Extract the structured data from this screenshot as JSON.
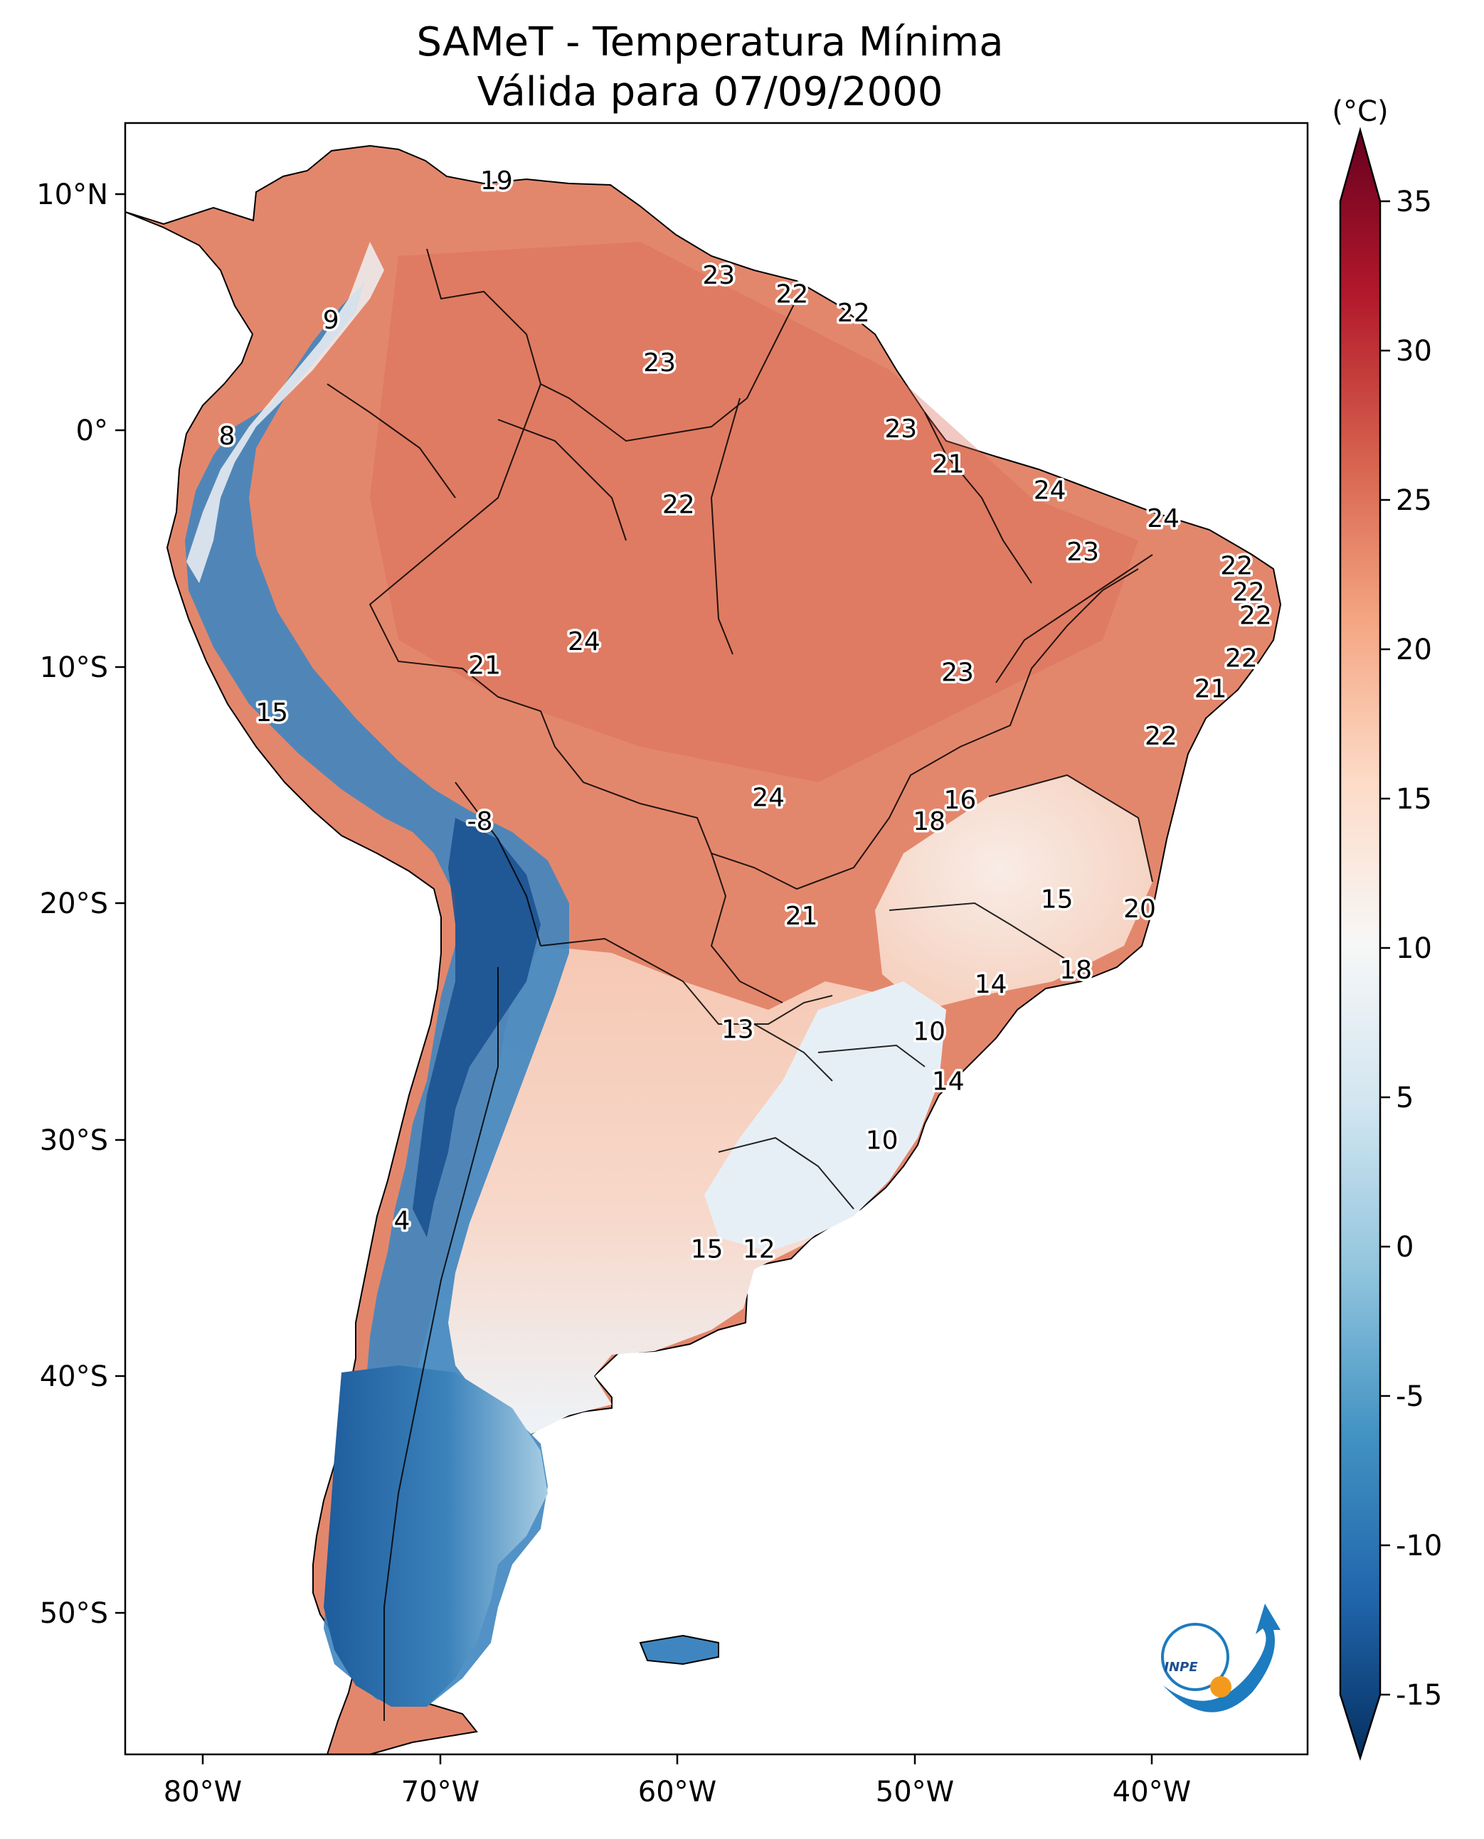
{
  "title": {
    "line1": "SAMeT - Temperatura Mínima",
    "line2": "Válida para 07/09/2000"
  },
  "map": {
    "lon_ticks": [
      "80°W",
      "70°W",
      "60°W",
      "50°W",
      "40°W"
    ],
    "lat_ticks": [
      "10°N",
      "0°",
      "10°S",
      "20°S",
      "30°S",
      "40°S",
      "50°S"
    ],
    "extent": {
      "lon": [
        -83,
        -33
      ],
      "lat": [
        -56,
        13
      ]
    },
    "point_labels": [
      {
        "text": "19",
        "lon": -67.3,
        "lat": 10.6
      },
      {
        "text": "23",
        "lon": -57.9,
        "lat": 6.6
      },
      {
        "text": "22",
        "lon": -54.8,
        "lat": 5.8
      },
      {
        "text": "22",
        "lon": -52.2,
        "lat": 5.0
      },
      {
        "text": "9",
        "lon": -74.3,
        "lat": 4.7
      },
      {
        "text": "23",
        "lon": -60.4,
        "lat": 2.9
      },
      {
        "text": "8",
        "lon": -78.7,
        "lat": -0.2
      },
      {
        "text": "23",
        "lon": -50.2,
        "lat": 0.1
      },
      {
        "text": "21",
        "lon": -48.2,
        "lat": -1.4
      },
      {
        "text": "22",
        "lon": -59.6,
        "lat": -3.1
      },
      {
        "text": "24",
        "lon": -43.9,
        "lat": -2.5
      },
      {
        "text": "24",
        "lon": -39.1,
        "lat": -3.7
      },
      {
        "text": "23",
        "lon": -42.5,
        "lat": -5.1
      },
      {
        "text": "22",
        "lon": -36.0,
        "lat": -5.7
      },
      {
        "text": "22",
        "lon": -35.5,
        "lat": -6.8
      },
      {
        "text": "22",
        "lon": -35.2,
        "lat": -7.8
      },
      {
        "text": "24",
        "lon": -63.6,
        "lat": -8.9
      },
      {
        "text": "22",
        "lon": -35.8,
        "lat": -9.6
      },
      {
        "text": "23",
        "lon": -47.8,
        "lat": -10.2
      },
      {
        "text": "21",
        "lon": -67.8,
        "lat": -9.9
      },
      {
        "text": "21",
        "lon": -37.1,
        "lat": -10.9
      },
      {
        "text": "15",
        "lon": -76.8,
        "lat": -11.9
      },
      {
        "text": "22",
        "lon": -39.2,
        "lat": -12.9
      },
      {
        "text": "24",
        "lon": -55.8,
        "lat": -15.5
      },
      {
        "text": "16",
        "lon": -47.7,
        "lat": -15.6
      },
      {
        "text": "18",
        "lon": -49.0,
        "lat": -16.5
      },
      {
        "text": "-8",
        "lon": -68.0,
        "lat": -16.5
      },
      {
        "text": "15",
        "lon": -43.6,
        "lat": -19.8
      },
      {
        "text": "20",
        "lon": -40.1,
        "lat": -20.2
      },
      {
        "text": "21",
        "lon": -54.4,
        "lat": -20.5
      },
      {
        "text": "18",
        "lon": -42.8,
        "lat": -22.8
      },
      {
        "text": "14",
        "lon": -46.4,
        "lat": -23.4
      },
      {
        "text": "13",
        "lon": -57.1,
        "lat": -25.3
      },
      {
        "text": "10",
        "lon": -49.0,
        "lat": -25.4
      },
      {
        "text": "14",
        "lon": -48.2,
        "lat": -27.5
      },
      {
        "text": "10",
        "lon": -51.0,
        "lat": -30.0
      },
      {
        "text": "4",
        "lon": -71.3,
        "lat": -33.4
      },
      {
        "text": "15",
        "lon": -58.4,
        "lat": -34.6
      },
      {
        "text": "12",
        "lon": -56.2,
        "lat": -34.6
      }
    ]
  },
  "colorbar": {
    "unit": "(°C)",
    "tick_labels": [
      "35",
      "30",
      "25",
      "20",
      "15",
      "10",
      "5",
      "0",
      "-5",
      "-10",
      "-15"
    ],
    "range": [
      -15,
      35
    ],
    "colors": [
      "#053061",
      "#2166ac",
      "#4393c3",
      "#92c5de",
      "#d1e5f0",
      "#f7f7f7",
      "#fddbc7",
      "#f4a582",
      "#d6604d",
      "#b2182b",
      "#67001f"
    ]
  },
  "logo": {
    "text": "INPE"
  },
  "colors": {
    "warm": "#e0836a",
    "hot": "#d5604d",
    "cold": "#2c6aa8",
    "coldest": "#103f7a",
    "neutral": "#f4f4f4",
    "border": "#000000",
    "logo_blue": "#1d7bbf",
    "logo_orange": "#f39a1e"
  }
}
